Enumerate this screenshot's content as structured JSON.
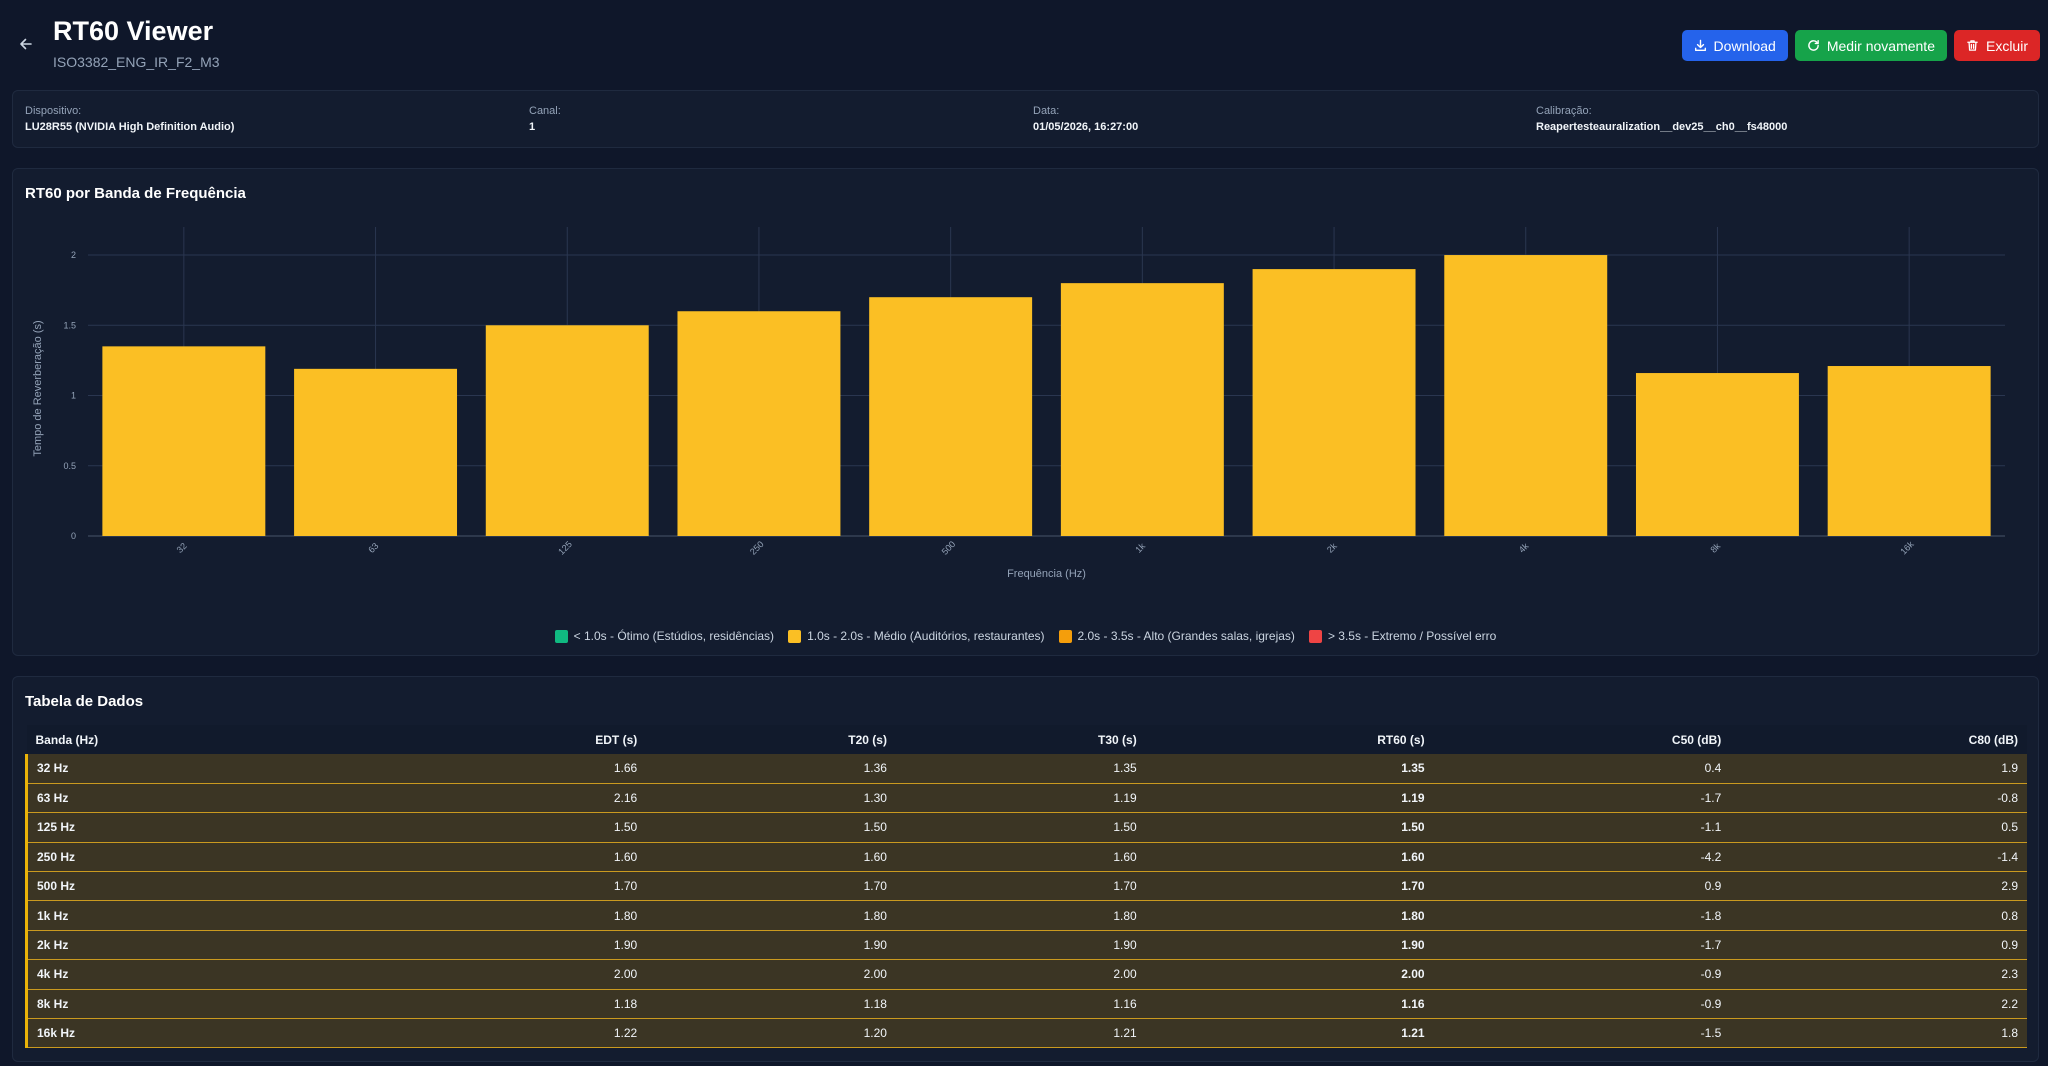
{
  "header": {
    "title": "RT60 Viewer",
    "subtitle": "ISO3382_ENG_IR_F2_M3",
    "buttons": {
      "download": "Download",
      "measure_again": "Medir novamente",
      "delete": "Excluir"
    }
  },
  "info": {
    "device_label": "Dispositivo:",
    "device_value": "LU28R55 (NVIDIA High Definition Audio)",
    "channel_label": "Canal:",
    "channel_value": "1",
    "date_label": "Data:",
    "date_value": "01/05/2026, 16:27:00",
    "calibration_label": "Calibração:",
    "calibration_value": "Reapertesteauralization__dev25__ch0__fs48000"
  },
  "chart_section": {
    "title": "RT60 por Banda de Frequência"
  },
  "chart_data": {
    "type": "bar",
    "title": "RT60 por Banda de Frequência",
    "xlabel": "Frequência (Hz)",
    "ylabel": "Tempo de Reverberação (s)",
    "categories": [
      "32",
      "63",
      "125",
      "250",
      "500",
      "1k",
      "2k",
      "4k",
      "8k",
      "16k"
    ],
    "values": [
      1.35,
      1.19,
      1.5,
      1.6,
      1.7,
      1.8,
      1.9,
      2.0,
      1.16,
      1.21
    ],
    "ylim": [
      0,
      2.1
    ],
    "yticks": [
      "0",
      "0.5",
      "1",
      "1.5",
      "2"
    ],
    "grid": true,
    "legend_position": "bottom",
    "bar_color": "#fbbf24",
    "legend": [
      {
        "label": "< 1.0s - Ótimo (Estúdios, residências)",
        "color": "#10b981"
      },
      {
        "label": "1.0s - 2.0s - Médio (Auditórios, restaurantes)",
        "color": "#fbbf24"
      },
      {
        "label": "2.0s - 3.5s - Alto (Grandes salas, igrejas)",
        "color": "#f59e0b"
      },
      {
        "label": "> 3.5s - Extremo / Possível erro",
        "color": "#ef4444"
      }
    ]
  },
  "table": {
    "title": "Tabela de Dados",
    "headers": [
      "Banda (Hz)",
      "EDT (s)",
      "T20 (s)",
      "T30 (s)",
      "RT60 (s)",
      "C50 (dB)",
      "C80 (dB)"
    ],
    "rows": [
      [
        "32 Hz",
        "1.66",
        "1.36",
        "1.35",
        "1.35",
        "0.4",
        "1.9"
      ],
      [
        "63 Hz",
        "2.16",
        "1.30",
        "1.19",
        "1.19",
        "-1.7",
        "-0.8"
      ],
      [
        "125 Hz",
        "1.50",
        "1.50",
        "1.50",
        "1.50",
        "-1.1",
        "0.5"
      ],
      [
        "250 Hz",
        "1.60",
        "1.60",
        "1.60",
        "1.60",
        "-4.2",
        "-1.4"
      ],
      [
        "500 Hz",
        "1.70",
        "1.70",
        "1.70",
        "1.70",
        "0.9",
        "2.9"
      ],
      [
        "1k Hz",
        "1.80",
        "1.80",
        "1.80",
        "1.80",
        "-1.8",
        "0.8"
      ],
      [
        "2k Hz",
        "1.90",
        "1.90",
        "1.90",
        "1.90",
        "-1.7",
        "0.9"
      ],
      [
        "4k Hz",
        "2.00",
        "2.00",
        "2.00",
        "2.00",
        "-0.9",
        "2.3"
      ],
      [
        "8k Hz",
        "1.18",
        "1.18",
        "1.16",
        "1.16",
        "-0.9",
        "2.2"
      ],
      [
        "16k Hz",
        "1.22",
        "1.20",
        "1.21",
        "1.21",
        "-1.5",
        "1.8"
      ]
    ]
  }
}
